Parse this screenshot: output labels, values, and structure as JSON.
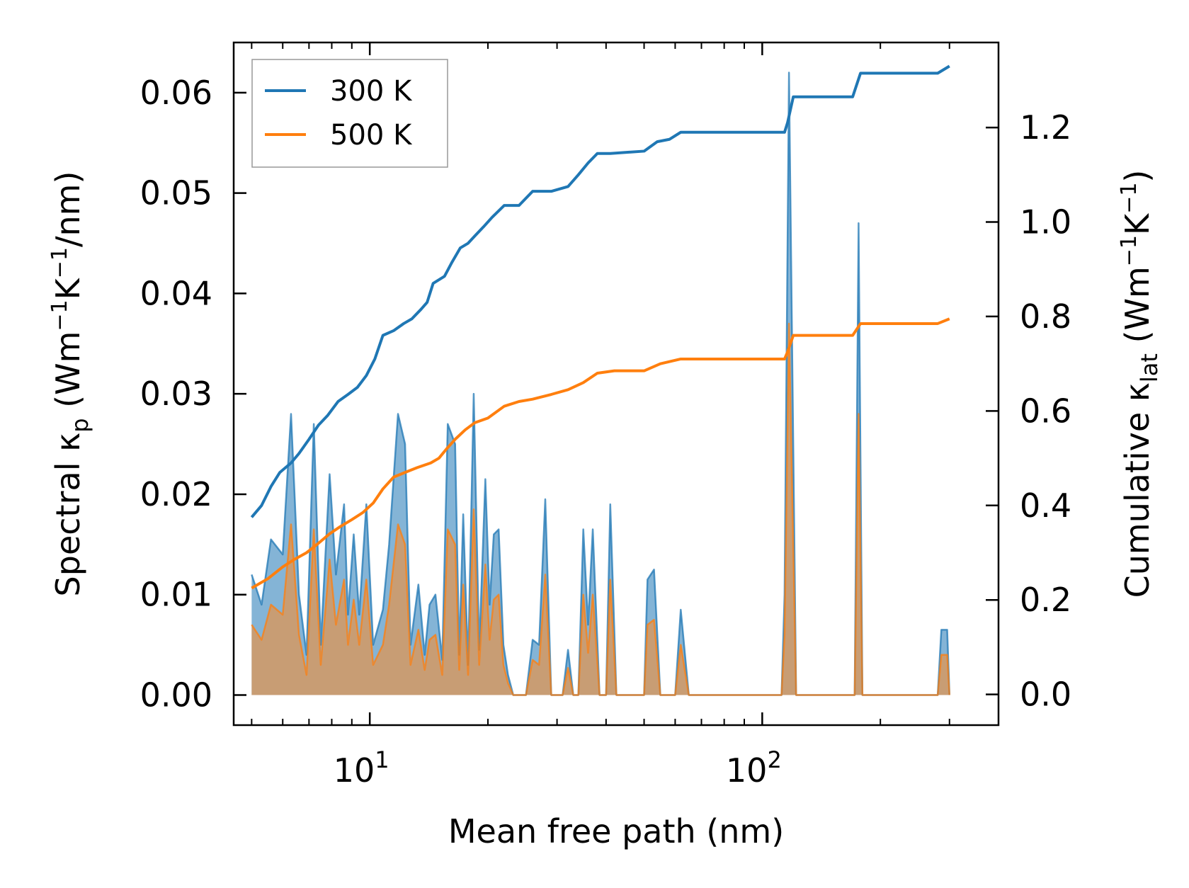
{
  "chart_data": {
    "type": "line",
    "x_scale": "log",
    "xlabel": "Mean free path (nm)",
    "ylabel_left": {
      "main": "Spectral κ",
      "sub": "p",
      "unit_pre": "(Wm",
      "unit_sup1": "−1",
      "unit_mid": "K",
      "unit_sup2": "−1",
      "unit_post": "/nm)"
    },
    "ylabel_right": {
      "main": "Cumulative κ",
      "sub": "lat",
      "unit_pre": "(Wm",
      "unit_sup1": "−1",
      "unit_mid": "K",
      "unit_sup2": "−1",
      "unit_post": ")"
    },
    "xlim": [
      4.5,
      400
    ],
    "ylim_left": [
      -0.003,
      0.065
    ],
    "ylim_right": [
      -0.065,
      1.38
    ],
    "x_ticks": [
      {
        "value": 10,
        "base": "10",
        "exp": "1"
      },
      {
        "value": 100,
        "base": "10",
        "exp": "2"
      }
    ],
    "y_ticks_left": [
      {
        "value": 0.0,
        "label": "0.00"
      },
      {
        "value": 0.01,
        "label": "0.01"
      },
      {
        "value": 0.02,
        "label": "0.02"
      },
      {
        "value": 0.03,
        "label": "0.03"
      },
      {
        "value": 0.04,
        "label": "0.04"
      },
      {
        "value": 0.05,
        "label": "0.05"
      },
      {
        "value": 0.06,
        "label": "0.06"
      }
    ],
    "y_ticks_right": [
      {
        "value": 0.0,
        "label": "0.0"
      },
      {
        "value": 0.2,
        "label": "0.2"
      },
      {
        "value": 0.4,
        "label": "0.4"
      },
      {
        "value": 0.6,
        "label": "0.6"
      },
      {
        "value": 0.8,
        "label": "0.8"
      },
      {
        "value": 1.0,
        "label": "1.0"
      },
      {
        "value": 1.2,
        "label": "1.2"
      }
    ],
    "legend": {
      "placement": "top-left",
      "entries": [
        "300 K",
        "500 K"
      ]
    },
    "series": [
      {
        "name": "300 K",
        "color": "#1f77b4",
        "fill_color": "#1f77b4",
        "cumulative": [
          [
            5.0,
            0.375
          ],
          [
            5.3,
            0.4
          ],
          [
            5.6,
            0.44
          ],
          [
            5.9,
            0.47
          ],
          [
            6.3,
            0.49
          ],
          [
            6.6,
            0.51
          ],
          [
            7.0,
            0.54
          ],
          [
            7.4,
            0.57
          ],
          [
            7.8,
            0.59
          ],
          [
            8.3,
            0.62
          ],
          [
            8.8,
            0.635
          ],
          [
            9.3,
            0.65
          ],
          [
            9.8,
            0.675
          ],
          [
            10.3,
            0.71
          ],
          [
            10.8,
            0.76
          ],
          [
            11.5,
            0.77
          ],
          [
            12.2,
            0.785
          ],
          [
            12.8,
            0.795
          ],
          [
            13.5,
            0.815
          ],
          [
            14.0,
            0.83
          ],
          [
            14.5,
            0.87
          ],
          [
            15.5,
            0.885
          ],
          [
            16.2,
            0.915
          ],
          [
            17.0,
            0.945
          ],
          [
            17.8,
            0.955
          ],
          [
            18.5,
            0.97
          ],
          [
            19.5,
            0.99
          ],
          [
            20.5,
            1.01
          ],
          [
            22.0,
            1.035
          ],
          [
            24.0,
            1.035
          ],
          [
            26.0,
            1.065
          ],
          [
            29.0,
            1.065
          ],
          [
            32.0,
            1.075
          ],
          [
            34.0,
            1.1
          ],
          [
            36.0,
            1.125
          ],
          [
            38.0,
            1.145
          ],
          [
            41.0,
            1.145
          ],
          [
            50.0,
            1.15
          ],
          [
            54.0,
            1.17
          ],
          [
            58.0,
            1.175
          ],
          [
            62.0,
            1.19
          ],
          [
            75.0,
            1.19
          ],
          [
            114.0,
            1.19
          ],
          [
            116.0,
            1.21
          ],
          [
            120.0,
            1.265
          ],
          [
            170.0,
            1.265
          ],
          [
            178.0,
            1.315
          ],
          [
            280.0,
            1.315
          ],
          [
            300.0,
            1.33
          ]
        ],
        "spectral": [
          [
            5.0,
            0.012
          ],
          [
            5.3,
            0.009
          ],
          [
            5.6,
            0.0155
          ],
          [
            6.0,
            0.014
          ],
          [
            6.3,
            0.028
          ],
          [
            6.6,
            0.01
          ],
          [
            6.9,
            0.004
          ],
          [
            7.2,
            0.027
          ],
          [
            7.5,
            0.005
          ],
          [
            7.9,
            0.022
          ],
          [
            8.2,
            0.012
          ],
          [
            8.6,
            0.019
          ],
          [
            8.8,
            0.008
          ],
          [
            9.1,
            0.016
          ],
          [
            9.4,
            0.008
          ],
          [
            9.8,
            0.019
          ],
          [
            10.2,
            0.005
          ],
          [
            10.8,
            0.0085
          ],
          [
            11.2,
            0.015
          ],
          [
            11.8,
            0.028
          ],
          [
            12.3,
            0.025
          ],
          [
            12.7,
            0.005
          ],
          [
            13.3,
            0.011
          ],
          [
            13.8,
            0.004
          ],
          [
            14.2,
            0.009
          ],
          [
            14.7,
            0.01
          ],
          [
            15.3,
            0.0035
          ],
          [
            15.8,
            0.027
          ],
          [
            16.5,
            0.025
          ],
          [
            16.9,
            0.004
          ],
          [
            17.3,
            0.018
          ],
          [
            17.8,
            0.003
          ],
          [
            18.4,
            0.03
          ],
          [
            19.0,
            0.0045
          ],
          [
            19.7,
            0.0215
          ],
          [
            20.2,
            0.009
          ],
          [
            20.7,
            0.016
          ],
          [
            21.3,
            0.0165
          ],
          [
            21.9,
            0.005
          ],
          [
            22.5,
            0.002
          ],
          [
            23.2,
            0.0
          ],
          [
            25.0,
            0.0
          ],
          [
            26.0,
            0.0055
          ],
          [
            27.0,
            0.005
          ],
          [
            28.0,
            0.0195
          ],
          [
            29.0,
            0.0
          ],
          [
            31.0,
            0.0
          ],
          [
            32.0,
            0.0045
          ],
          [
            33.0,
            0.0
          ],
          [
            34.0,
            0.0
          ],
          [
            35.0,
            0.0165
          ],
          [
            36.0,
            0.007
          ],
          [
            37.0,
            0.0165
          ],
          [
            38.5,
            0.0
          ],
          [
            40.0,
            0.0
          ],
          [
            41.0,
            0.019
          ],
          [
            42.5,
            0.0
          ],
          [
            50.0,
            0.0
          ],
          [
            51.0,
            0.0115
          ],
          [
            53.0,
            0.0125
          ],
          [
            55.0,
            0.0
          ],
          [
            60.0,
            0.0
          ],
          [
            62.0,
            0.0085
          ],
          [
            65.0,
            0.0
          ],
          [
            112.0,
            0.0
          ],
          [
            114.0,
            0.01
          ],
          [
            117.0,
            0.062
          ],
          [
            122.0,
            0.0
          ],
          [
            168.0,
            0.0
          ],
          [
            172.0,
            0.0
          ],
          [
            176.0,
            0.047
          ],
          [
            180.0,
            0.0
          ],
          [
            280.0,
            0.0
          ],
          [
            286.0,
            0.0065
          ],
          [
            296.0,
            0.0065
          ],
          [
            300.0,
            0.0
          ]
        ]
      },
      {
        "name": "500 K",
        "color": "#ff7f0e",
        "fill_color": "#d9975b",
        "cumulative": [
          [
            5.0,
            0.225
          ],
          [
            5.5,
            0.245
          ],
          [
            6.0,
            0.27
          ],
          [
            6.4,
            0.285
          ],
          [
            6.9,
            0.3
          ],
          [
            7.4,
            0.32
          ],
          [
            7.9,
            0.34
          ],
          [
            8.4,
            0.355
          ],
          [
            9.0,
            0.37
          ],
          [
            9.6,
            0.385
          ],
          [
            10.2,
            0.405
          ],
          [
            10.8,
            0.435
          ],
          [
            11.5,
            0.46
          ],
          [
            12.3,
            0.47
          ],
          [
            13.2,
            0.48
          ],
          [
            14.3,
            0.49
          ],
          [
            15.0,
            0.5
          ],
          [
            15.7,
            0.52
          ],
          [
            16.5,
            0.54
          ],
          [
            17.5,
            0.56
          ],
          [
            18.5,
            0.575
          ],
          [
            20.0,
            0.585
          ],
          [
            22.0,
            0.61
          ],
          [
            24.0,
            0.62
          ],
          [
            26.0,
            0.625
          ],
          [
            29.0,
            0.635
          ],
          [
            32.0,
            0.645
          ],
          [
            35.0,
            0.66
          ],
          [
            38.0,
            0.68
          ],
          [
            42.0,
            0.685
          ],
          [
            50.0,
            0.685
          ],
          [
            55.0,
            0.7
          ],
          [
            62.0,
            0.71
          ],
          [
            80.0,
            0.71
          ],
          [
            114.0,
            0.71
          ],
          [
            116.0,
            0.725
          ],
          [
            120.0,
            0.76
          ],
          [
            170.0,
            0.76
          ],
          [
            178.0,
            0.785
          ],
          [
            280.0,
            0.785
          ],
          [
            300.0,
            0.795
          ]
        ],
        "spectral": [
          [
            5.0,
            0.007
          ],
          [
            5.3,
            0.0055
          ],
          [
            5.6,
            0.009
          ],
          [
            6.0,
            0.008
          ],
          [
            6.3,
            0.017
          ],
          [
            6.6,
            0.006
          ],
          [
            6.9,
            0.002
          ],
          [
            7.2,
            0.0165
          ],
          [
            7.5,
            0.003
          ],
          [
            7.9,
            0.0135
          ],
          [
            8.2,
            0.007
          ],
          [
            8.6,
            0.0115
          ],
          [
            8.8,
            0.005
          ],
          [
            9.1,
            0.0095
          ],
          [
            9.4,
            0.005
          ],
          [
            9.8,
            0.0115
          ],
          [
            10.2,
            0.003
          ],
          [
            10.8,
            0.005
          ],
          [
            11.2,
            0.009
          ],
          [
            11.8,
            0.017
          ],
          [
            12.3,
            0.015
          ],
          [
            12.7,
            0.003
          ],
          [
            13.3,
            0.0065
          ],
          [
            13.8,
            0.0025
          ],
          [
            14.2,
            0.0055
          ],
          [
            14.7,
            0.006
          ],
          [
            15.3,
            0.002
          ],
          [
            15.8,
            0.0165
          ],
          [
            16.5,
            0.015
          ],
          [
            16.9,
            0.0025
          ],
          [
            17.3,
            0.011
          ],
          [
            17.8,
            0.002
          ],
          [
            18.4,
            0.0185
          ],
          [
            19.0,
            0.003
          ],
          [
            19.7,
            0.013
          ],
          [
            20.2,
            0.0055
          ],
          [
            20.7,
            0.0095
          ],
          [
            21.3,
            0.01
          ],
          [
            21.9,
            0.003
          ],
          [
            22.5,
            0.0012
          ],
          [
            23.2,
            0.0
          ],
          [
            25.0,
            0.0
          ],
          [
            26.0,
            0.0035
          ],
          [
            27.0,
            0.003
          ],
          [
            28.0,
            0.012
          ],
          [
            29.0,
            0.0
          ],
          [
            31.0,
            0.0
          ],
          [
            32.0,
            0.0027
          ],
          [
            33.0,
            0.0
          ],
          [
            34.0,
            0.0
          ],
          [
            35.0,
            0.01
          ],
          [
            36.0,
            0.0042
          ],
          [
            37.0,
            0.01
          ],
          [
            38.5,
            0.0
          ],
          [
            40.0,
            0.0
          ],
          [
            41.0,
            0.0115
          ],
          [
            42.5,
            0.0
          ],
          [
            50.0,
            0.0
          ],
          [
            51.0,
            0.007
          ],
          [
            53.0,
            0.0075
          ],
          [
            55.0,
            0.0
          ],
          [
            60.0,
            0.0
          ],
          [
            62.0,
            0.005
          ],
          [
            65.0,
            0.0
          ],
          [
            112.0,
            0.0
          ],
          [
            114.0,
            0.006
          ],
          [
            117.0,
            0.037
          ],
          [
            122.0,
            0.0
          ],
          [
            168.0,
            0.0
          ],
          [
            172.0,
            0.0
          ],
          [
            176.0,
            0.028
          ],
          [
            180.0,
            0.0
          ],
          [
            280.0,
            0.0
          ],
          [
            286.0,
            0.004
          ],
          [
            296.0,
            0.004
          ],
          [
            300.0,
            0.0
          ]
        ]
      }
    ]
  }
}
